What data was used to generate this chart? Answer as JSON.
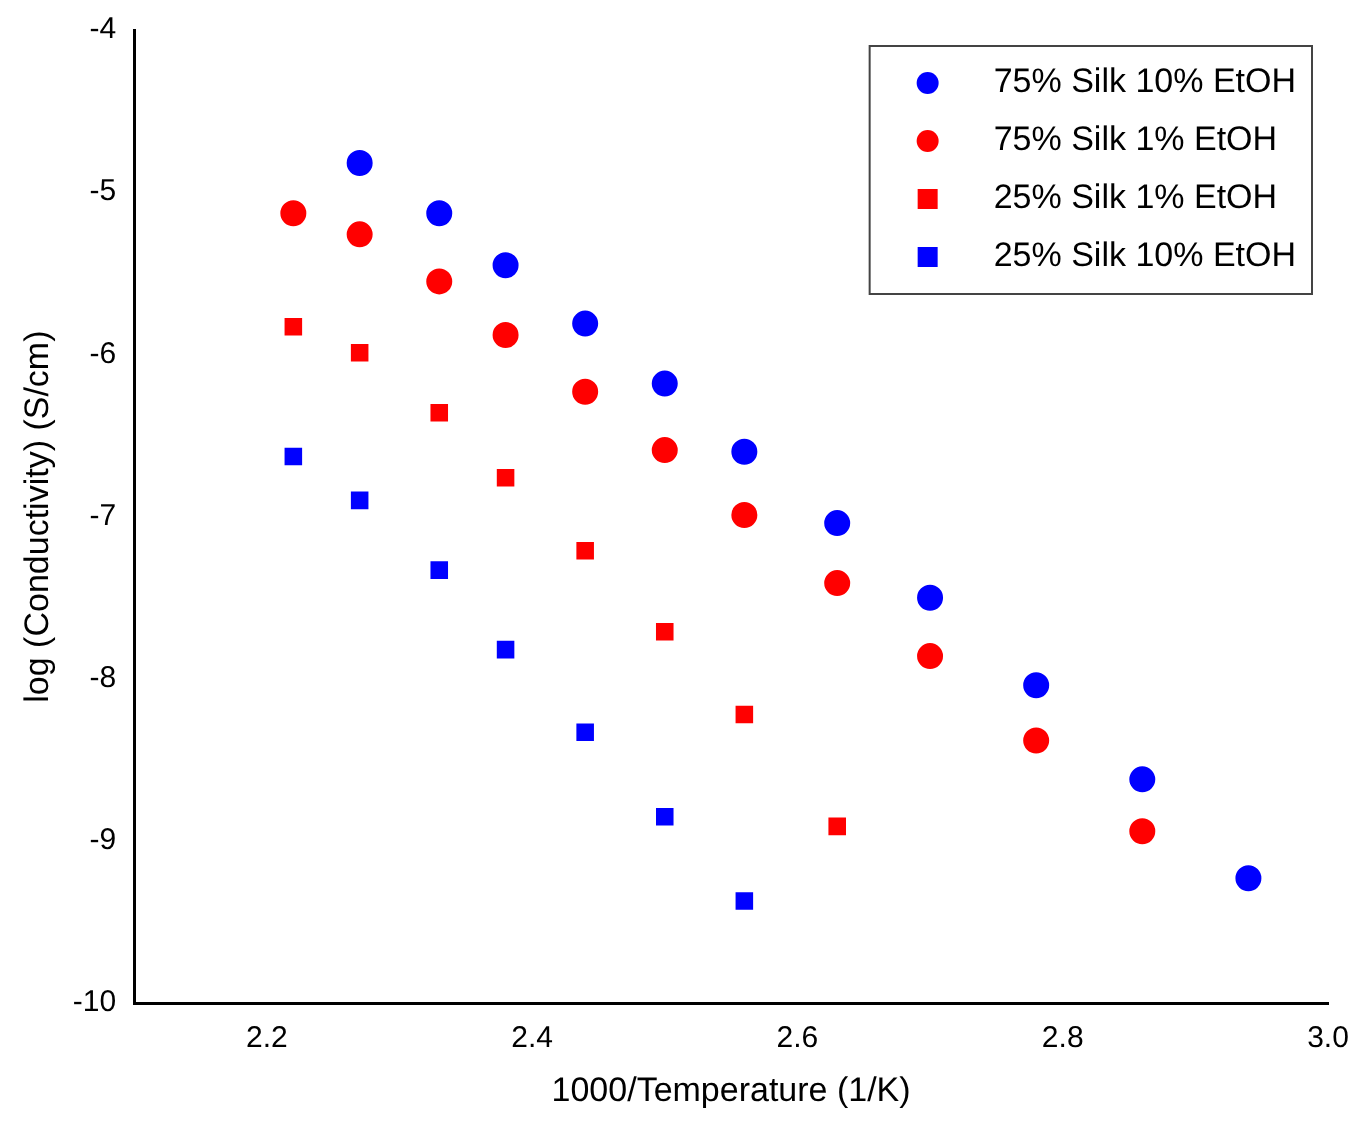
{
  "chart_data": {
    "type": "scatter",
    "xlabel": "1000/Temperature (1/K)",
    "ylabel": "log (Conductivity) (S/cm)",
    "xlim": [
      2.1,
      3.0
    ],
    "ylim": [
      -10,
      -4
    ],
    "xticks": [
      2.2,
      2.4,
      2.6,
      2.8,
      {
        "value": 3.0,
        "label": "3.0"
      }
    ],
    "yticks": [
      -10,
      -9,
      -8,
      -7,
      -6,
      -5,
      -4
    ],
    "grid": false,
    "legend": "top right",
    "series": [
      {
        "name": "75% Silk 10% EtOH",
        "color": "#0000ff",
        "marker": "circle",
        "x": [
          2.27,
          2.33,
          2.38,
          2.44,
          2.5,
          2.56,
          2.63,
          2.7,
          2.78,
          2.86,
          2.94
        ],
        "values": [
          -4.82,
          -5.13,
          -5.45,
          -5.81,
          -6.18,
          -6.6,
          -7.04,
          -7.5,
          -8.04,
          -8.62,
          -9.23
        ]
      },
      {
        "name": "75% Silk 1% EtOH",
        "color": "#ff0000",
        "marker": "circle",
        "x": [
          2.22,
          2.27,
          2.33,
          2.38,
          2.44,
          2.5,
          2.56,
          2.63,
          2.7,
          2.78,
          2.86
        ],
        "values": [
          -5.13,
          -5.26,
          -5.55,
          -5.88,
          -6.23,
          -6.59,
          -6.99,
          -7.41,
          -7.86,
          -8.38,
          -8.94
        ]
      },
      {
        "name": "25% Silk 1% EtOH",
        "color": "#ff0000",
        "marker": "square",
        "x": [
          2.22,
          2.27,
          2.33,
          2.38,
          2.44,
          2.5,
          2.56,
          2.63
        ],
        "values": [
          -5.83,
          -5.99,
          -6.36,
          -6.76,
          -7.21,
          -7.71,
          -8.22,
          -8.91
        ]
      },
      {
        "name": "25% Silk 10% EtOH",
        "color": "#0000ff",
        "marker": "square",
        "x": [
          2.22,
          2.27,
          2.33,
          2.38,
          2.44,
          2.5,
          2.56
        ],
        "values": [
          -6.63,
          -6.9,
          -7.33,
          -7.82,
          -8.33,
          -8.85,
          -9.37
        ]
      }
    ]
  }
}
